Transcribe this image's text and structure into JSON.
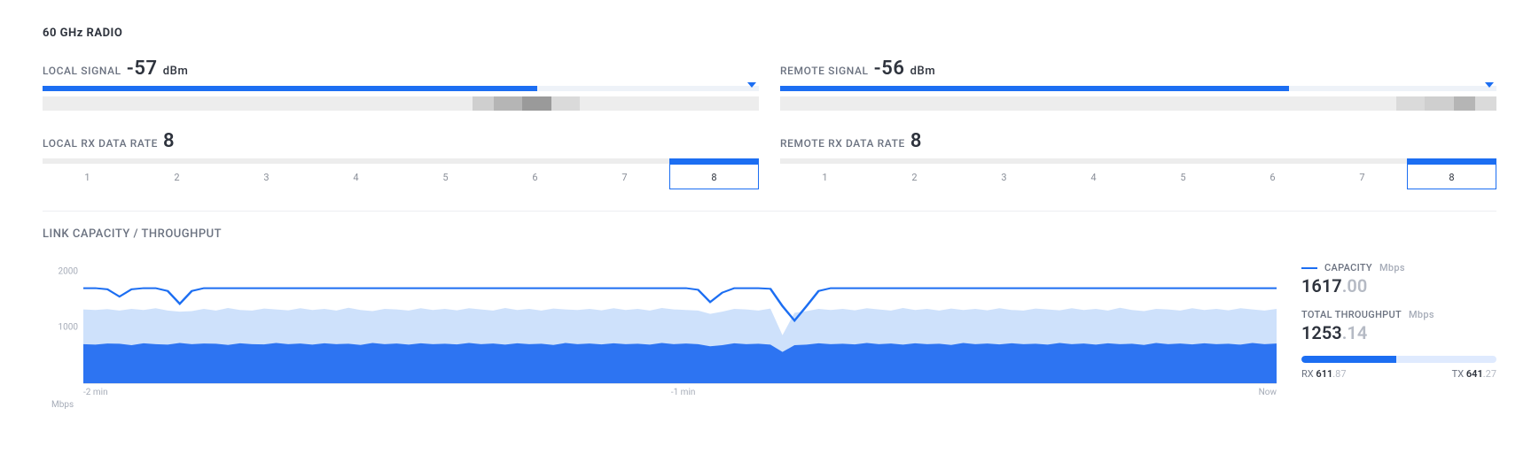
{
  "colors": {
    "primary": "#1c6ef2",
    "track_light": "#eef2f8",
    "track_gray": "#ededed",
    "gray_seg_a": "#cfcfcf",
    "gray_seg_b": "#b5b5b5",
    "gray_seg_c": "#9a9a9a",
    "gray_seg_d": "#dadada",
    "area_light": "#c9defb",
    "area_dark": "#2d74f2",
    "stroke": "#1c6ef2",
    "text_muted": "#a6acb8"
  },
  "title": "60 GHz RADIO",
  "local_signal": {
    "label": "LOCAL SIGNAL",
    "value": "-57",
    "unit": "dBm",
    "fill_pct": 69,
    "caret_pct": 99,
    "hist_segments": [
      {
        "left_pct": 60,
        "width_pct": 7,
        "shade": "gray_seg_a"
      },
      {
        "left_pct": 67,
        "width_pct": 4,
        "shade": "gray_seg_c"
      },
      {
        "left_pct": 63,
        "width_pct": 4,
        "shade": "gray_seg_b"
      },
      {
        "left_pct": 71,
        "width_pct": 4,
        "shade": "gray_seg_d"
      }
    ]
  },
  "remote_signal": {
    "label": "REMOTE SIGNAL",
    "value": "-56",
    "unit": "dBm",
    "fill_pct": 71,
    "caret_pct": 99,
    "hist_segments": [
      {
        "left_pct": 86,
        "width_pct": 4,
        "shade": "gray_seg_d"
      },
      {
        "left_pct": 90,
        "width_pct": 4,
        "shade": "gray_seg_a"
      },
      {
        "left_pct": 94,
        "width_pct": 3,
        "shade": "gray_seg_b"
      },
      {
        "left_pct": 97,
        "width_pct": 3,
        "shade": "gray_seg_d"
      }
    ]
  },
  "local_rate": {
    "label": "LOCAL RX DATA RATE",
    "value": "8",
    "cells": [
      "1",
      "2",
      "3",
      "4",
      "5",
      "6",
      "7",
      "8"
    ],
    "active_index": 7
  },
  "remote_rate": {
    "label": "REMOTE RX DATA RATE",
    "value": "8",
    "cells": [
      "1",
      "2",
      "3",
      "4",
      "5",
      "6",
      "7",
      "8"
    ],
    "active_index": 7
  },
  "chart": {
    "title": "LINK CAPACITY / THROUGHPUT",
    "y": {
      "max": 2200,
      "ticks": [
        2000,
        1000
      ],
      "unit": "Mbps"
    },
    "x": {
      "labels": [
        "-2 min",
        "-1 min",
        "Now"
      ]
    },
    "capacity_series": [
      1700,
      1700,
      1680,
      1550,
      1680,
      1700,
      1700,
      1650,
      1420,
      1650,
      1700,
      1700,
      1700,
      1700,
      1700,
      1700,
      1700,
      1700,
      1700,
      1700,
      1700,
      1700,
      1700,
      1700,
      1700,
      1700,
      1700,
      1700,
      1700,
      1700,
      1700,
      1700,
      1700,
      1700,
      1700,
      1700,
      1700,
      1700,
      1700,
      1700,
      1700,
      1700,
      1700,
      1700,
      1700,
      1700,
      1700,
      1700,
      1700,
      1700,
      1700,
      1670,
      1450,
      1620,
      1700,
      1700,
      1700,
      1690,
      1380,
      1120,
      1380,
      1650,
      1700,
      1700,
      1700,
      1700,
      1700,
      1700,
      1700,
      1700,
      1700,
      1700,
      1700,
      1700,
      1700,
      1700,
      1700,
      1700,
      1700,
      1700,
      1700,
      1700,
      1700,
      1700,
      1700,
      1700,
      1700,
      1700,
      1700,
      1700,
      1700,
      1700,
      1700,
      1700,
      1700,
      1700,
      1700,
      1700,
      1700,
      1700
    ],
    "total_area_series": [
      1320,
      1310,
      1325,
      1300,
      1330,
      1310,
      1340,
      1300,
      1280,
      1290,
      1330,
      1300,
      1345,
      1310,
      1300,
      1335,
      1320,
      1305,
      1340,
      1310,
      1330,
      1300,
      1350,
      1310,
      1290,
      1330,
      1320,
      1300,
      1340,
      1310,
      1330,
      1305,
      1340,
      1320,
      1300,
      1345,
      1310,
      1330,
      1300,
      1335,
      1320,
      1310,
      1330,
      1305,
      1340,
      1310,
      1330,
      1300,
      1345,
      1320,
      1310,
      1300,
      1240,
      1280,
      1330,
      1320,
      1300,
      1335,
      860,
      1260,
      1290,
      1330,
      1310,
      1330,
      1305,
      1340,
      1320,
      1300,
      1345,
      1310,
      1330,
      1300,
      1335,
      1310,
      1330,
      1305,
      1340,
      1310,
      1300,
      1335,
      1320,
      1305,
      1340,
      1310,
      1330,
      1300,
      1350,
      1310,
      1290,
      1330,
      1320,
      1300,
      1340,
      1310,
      1330,
      1305,
      1340,
      1320,
      1300,
      1330
    ],
    "rx_area_series": [
      700,
      690,
      710,
      705,
      680,
      715,
      700,
      690,
      720,
      700,
      710,
      705,
      685,
      715,
      700,
      695,
      720,
      700,
      710,
      690,
      715,
      700,
      705,
      685,
      720,
      700,
      710,
      690,
      715,
      700,
      705,
      695,
      720,
      700,
      710,
      690,
      715,
      700,
      705,
      685,
      720,
      700,
      710,
      695,
      715,
      700,
      705,
      690,
      720,
      700,
      710,
      700,
      660,
      680,
      715,
      700,
      705,
      690,
      560,
      680,
      690,
      715,
      700,
      705,
      695,
      720,
      700,
      710,
      690,
      715,
      700,
      705,
      685,
      720,
      700,
      710,
      695,
      715,
      700,
      705,
      690,
      720,
      700,
      710,
      690,
      715,
      700,
      705,
      685,
      720,
      700,
      710,
      695,
      715,
      700,
      705,
      690,
      720,
      700,
      710
    ]
  },
  "legend": {
    "capacity": {
      "label": "CAPACITY",
      "unit": "Mbps",
      "value_int": "1617",
      "value_frac": ".00"
    },
    "total": {
      "label": "TOTAL THROUGHPUT",
      "unit": "Mbps",
      "value_int": "1253",
      "value_frac": ".14"
    },
    "rx": {
      "label": "RX",
      "value_int": "611",
      "value_frac": ".87"
    },
    "tx": {
      "label": "TX",
      "value_int": "641",
      "value_frac": ".27"
    },
    "rx_pct": 48.8
  }
}
